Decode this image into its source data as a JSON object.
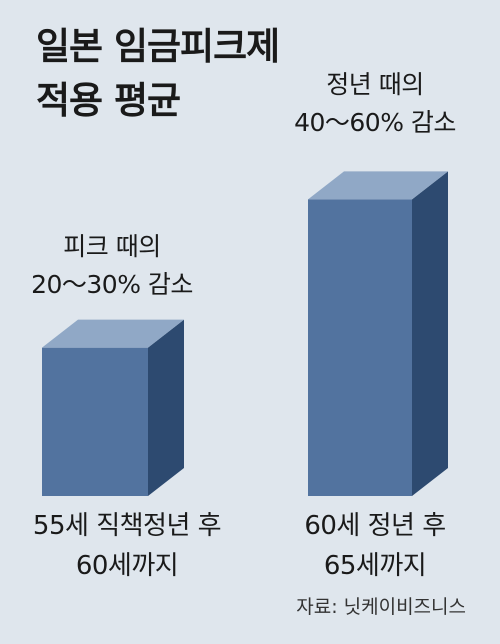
{
  "chart_data": {
    "type": "bar",
    "title": [
      "일본 임금피크제",
      "적용 평균"
    ],
    "categories": [
      [
        "55세 직책정년 후",
        "60세까지"
      ],
      [
        "60세 정년 후",
        "65세까지"
      ]
    ],
    "annotations": [
      [
        "피크 때의",
        "20～30% 감소"
      ],
      [
        "정년 때의",
        "40～60% 감소"
      ]
    ],
    "values": [
      25,
      50
    ],
    "ylim": [
      0,
      60
    ],
    "grid": false,
    "legend": "none",
    "style": {
      "front": "#52739f",
      "side": "#2d4a70",
      "top": "#90a8c6",
      "background": "#dfe6ed"
    },
    "source": "자료: 닛케이비즈니스"
  }
}
